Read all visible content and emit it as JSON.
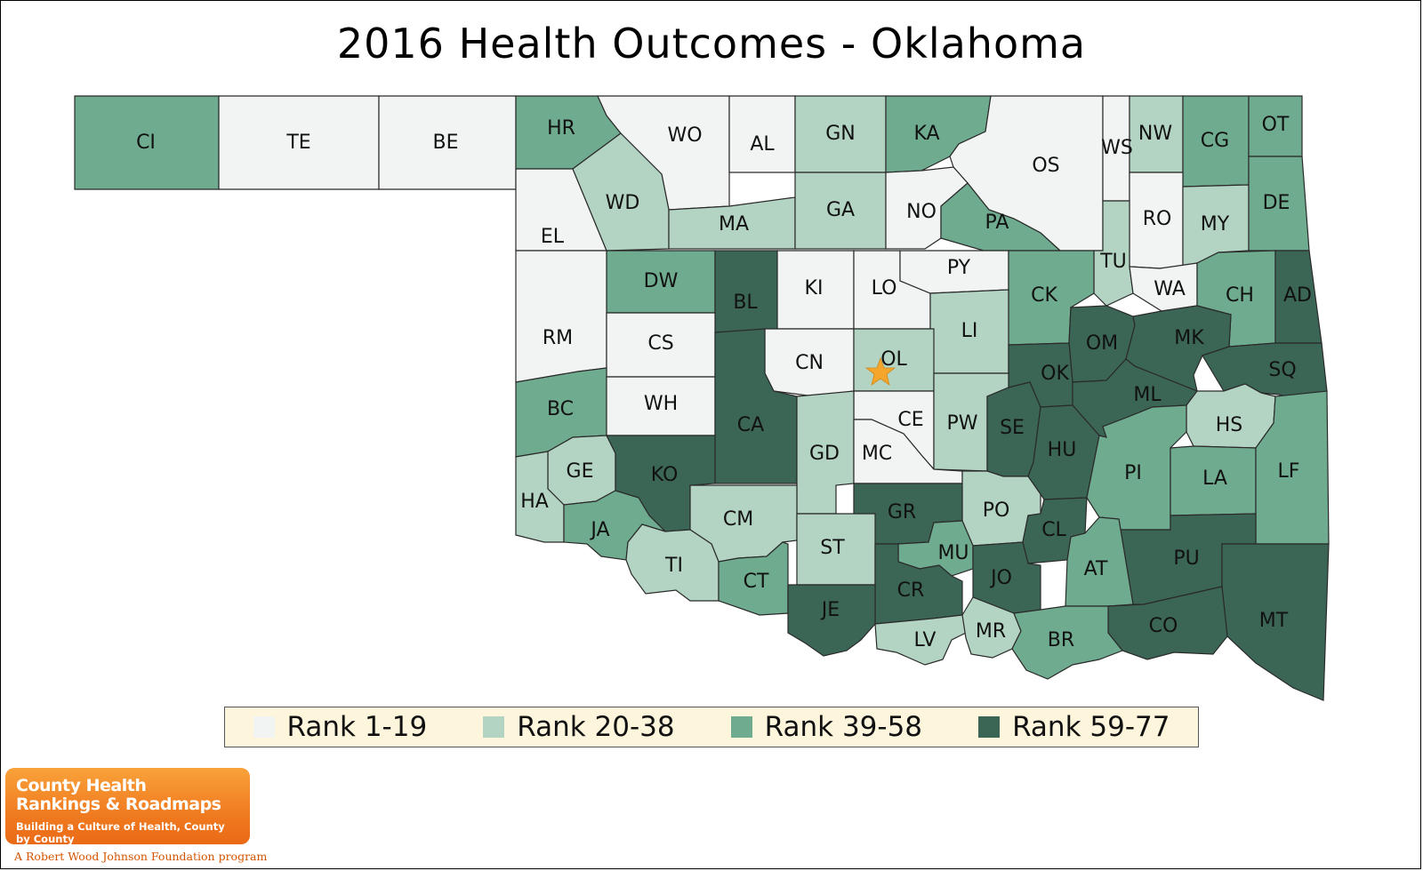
{
  "title": "2016 Health Outcomes - Oklahoma",
  "colors": {
    "rank_1_19": "#f1f4f2",
    "rank_20_38": "#b3d4c3",
    "rank_39_58": "#6fab8f",
    "rank_59_77": "#3b6656",
    "star": "#f4a52c"
  },
  "legend": [
    {
      "label": "Rank 1-19",
      "color": "#f1f4f2"
    },
    {
      "label": "Rank 20-38",
      "color": "#b3d4c3"
    },
    {
      "label": "Rank 39-58",
      "color": "#6fab8f"
    },
    {
      "label": "Rank 59-77",
      "color": "#3b6656"
    }
  ],
  "marker": {
    "icon": "star-icon",
    "county": "OL"
  },
  "counties": [
    {
      "abbr": "CI",
      "tier": 3
    },
    {
      "abbr": "TE",
      "tier": 1
    },
    {
      "abbr": "BE",
      "tier": 1
    },
    {
      "abbr": "HR",
      "tier": 3
    },
    {
      "abbr": "WO",
      "tier": 1
    },
    {
      "abbr": "AL",
      "tier": 1
    },
    {
      "abbr": "GN",
      "tier": 2
    },
    {
      "abbr": "KA",
      "tier": 3
    },
    {
      "abbr": "OS",
      "tier": 1
    },
    {
      "abbr": "WS",
      "tier": 1
    },
    {
      "abbr": "NW",
      "tier": 2
    },
    {
      "abbr": "CG",
      "tier": 3
    },
    {
      "abbr": "OT",
      "tier": 3
    },
    {
      "abbr": "EL",
      "tier": 1
    },
    {
      "abbr": "WD",
      "tier": 2
    },
    {
      "abbr": "MA",
      "tier": 2
    },
    {
      "abbr": "GA",
      "tier": 2
    },
    {
      "abbr": "NO",
      "tier": 1
    },
    {
      "abbr": "PA",
      "tier": 3
    },
    {
      "abbr": "RO",
      "tier": 1
    },
    {
      "abbr": "MY",
      "tier": 2
    },
    {
      "abbr": "DE",
      "tier": 3
    },
    {
      "abbr": "TU",
      "tier": 2
    },
    {
      "abbr": "DW",
      "tier": 3
    },
    {
      "abbr": "BL",
      "tier": 4
    },
    {
      "abbr": "KI",
      "tier": 1
    },
    {
      "abbr": "LO",
      "tier": 1
    },
    {
      "abbr": "PY",
      "tier": 1
    },
    {
      "abbr": "CK",
      "tier": 3
    },
    {
      "abbr": "WA",
      "tier": 1
    },
    {
      "abbr": "CH",
      "tier": 3
    },
    {
      "abbr": "AD",
      "tier": 4
    },
    {
      "abbr": "RM",
      "tier": 1
    },
    {
      "abbr": "CS",
      "tier": 1
    },
    {
      "abbr": "LI",
      "tier": 2
    },
    {
      "abbr": "OM",
      "tier": 4
    },
    {
      "abbr": "MK",
      "tier": 4
    },
    {
      "abbr": "CN",
      "tier": 1
    },
    {
      "abbr": "OL",
      "tier": 2
    },
    {
      "abbr": "OK",
      "tier": 4
    },
    {
      "abbr": "SQ",
      "tier": 4
    },
    {
      "abbr": "BC",
      "tier": 3
    },
    {
      "abbr": "WH",
      "tier": 1
    },
    {
      "abbr": "ML",
      "tier": 4
    },
    {
      "abbr": "CA",
      "tier": 4
    },
    {
      "abbr": "CE",
      "tier": 1
    },
    {
      "abbr": "PW",
      "tier": 2
    },
    {
      "abbr": "SE",
      "tier": 4
    },
    {
      "abbr": "HS",
      "tier": 2
    },
    {
      "abbr": "HU",
      "tier": 4
    },
    {
      "abbr": "GE",
      "tier": 2
    },
    {
      "abbr": "KO",
      "tier": 4
    },
    {
      "abbr": "GD",
      "tier": 2
    },
    {
      "abbr": "MC",
      "tier": 1
    },
    {
      "abbr": "PI",
      "tier": 3
    },
    {
      "abbr": "LA",
      "tier": 3
    },
    {
      "abbr": "LF",
      "tier": 3
    },
    {
      "abbr": "HA",
      "tier": 2
    },
    {
      "abbr": "GR",
      "tier": 4
    },
    {
      "abbr": "PO",
      "tier": 2
    },
    {
      "abbr": "CM",
      "tier": 2
    },
    {
      "abbr": "CL",
      "tier": 4
    },
    {
      "abbr": "JA",
      "tier": 3
    },
    {
      "abbr": "ST",
      "tier": 2
    },
    {
      "abbr": "MU",
      "tier": 3
    },
    {
      "abbr": "PU",
      "tier": 4
    },
    {
      "abbr": "TI",
      "tier": 2
    },
    {
      "abbr": "AT",
      "tier": 3
    },
    {
      "abbr": "JO",
      "tier": 4
    },
    {
      "abbr": "CT",
      "tier": 3
    },
    {
      "abbr": "CR",
      "tier": 4
    },
    {
      "abbr": "JE",
      "tier": 4
    },
    {
      "abbr": "MT",
      "tier": 4
    },
    {
      "abbr": "CO",
      "tier": 4
    },
    {
      "abbr": "LV",
      "tier": 2
    },
    {
      "abbr": "MR",
      "tier": 2
    },
    {
      "abbr": "BR",
      "tier": 3
    }
  ],
  "logo": {
    "line1": "County Health",
    "line2": "Rankings & Roadmaps",
    "tagline": "Building a Culture of Health, County by County",
    "sub": "A Robert Wood Johnson Foundation program"
  }
}
